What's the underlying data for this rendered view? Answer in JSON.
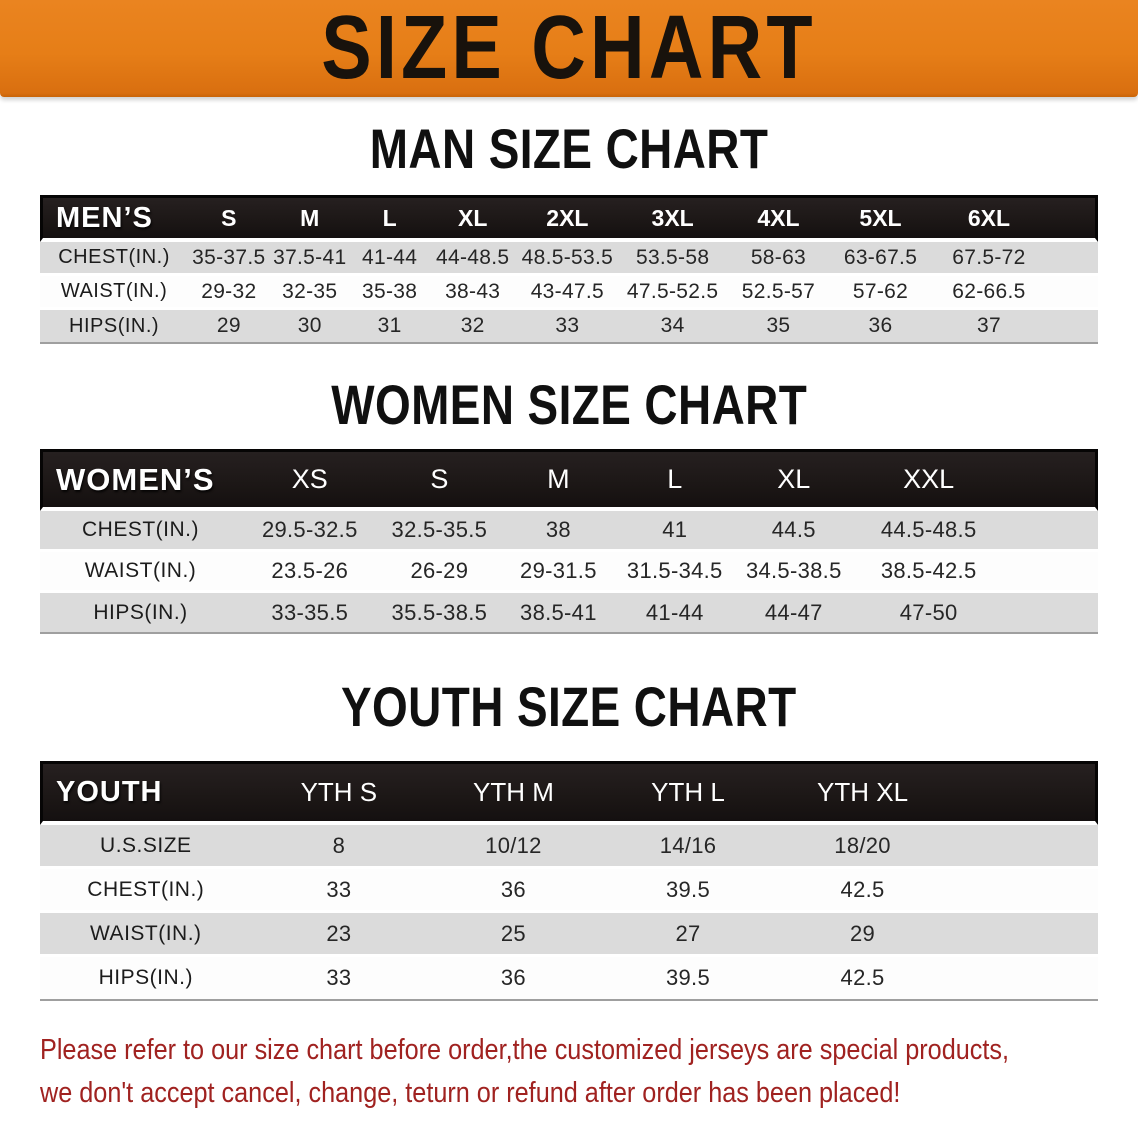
{
  "banner": {
    "title": "SIZE CHART",
    "bg_color": "#e67e17",
    "text_color": "#18120c"
  },
  "sections": [
    {
      "id": "men",
      "heading": "MAN SIZE CHART",
      "corner_label": "MEN’S",
      "sizes": [
        "S",
        "M",
        "L",
        "XL",
        "2XL",
        "3XL",
        "4XL",
        "5XL",
        "6XL"
      ],
      "rows": [
        {
          "label": "CHEST(IN.)",
          "values": [
            "35-37.5",
            "37.5-41",
            "41-44",
            "44-48.5",
            "48.5-53.5",
            "53.5-58",
            "58-63",
            "63-67.5",
            "67.5-72"
          ]
        },
        {
          "label": "WAIST(IN.)",
          "values": [
            "29-32",
            "32-35",
            "35-38",
            "38-43",
            "43-47.5",
            "47.5-52.5",
            "52.5-57",
            "57-62",
            "62-66.5"
          ]
        },
        {
          "label": "HIPS(IN.)",
          "values": [
            "29",
            "30",
            "31",
            "32",
            "33",
            "34",
            "35",
            "36",
            "37"
          ]
        }
      ]
    },
    {
      "id": "women",
      "heading": "WOMEN SIZE CHART",
      "corner_label": "WOMEN’S",
      "sizes": [
        "XS",
        "S",
        "M",
        "L",
        "XL",
        "XXL"
      ],
      "rows": [
        {
          "label": "CHEST(IN.)",
          "values": [
            "29.5-32.5",
            "32.5-35.5",
            "38",
            "41",
            "44.5",
            "44.5-48.5"
          ]
        },
        {
          "label": "WAIST(IN.)",
          "values": [
            "23.5-26",
            "26-29",
            "29-31.5",
            "31.5-34.5",
            "34.5-38.5",
            "38.5-42.5"
          ]
        },
        {
          "label": "HIPS(IN.)",
          "values": [
            "33-35.5",
            "35.5-38.5",
            "38.5-41",
            "41-44",
            "44-47",
            "47-50"
          ]
        }
      ]
    },
    {
      "id": "youth",
      "heading": "YOUTH SIZE CHART",
      "corner_label": "YOUTH",
      "sizes": [
        "YTH S",
        "YTH M",
        "YTH L",
        "YTH XL"
      ],
      "rows": [
        {
          "label": "U.S.SIZE",
          "values": [
            "8",
            "10/12",
            "14/16",
            "18/20"
          ]
        },
        {
          "label": "CHEST(IN.)",
          "values": [
            "33",
            "36",
            "39.5",
            "42.5"
          ]
        },
        {
          "label": "WAIST(IN.)",
          "values": [
            "23",
            "25",
            "27",
            "29"
          ]
        },
        {
          "label": "HIPS(IN.)",
          "values": [
            "33",
            "36",
            "39.5",
            "42.5"
          ]
        }
      ]
    }
  ],
  "table_style": {
    "header_bg": "#1a1514",
    "header_text": "#ffffff",
    "stripe_gray": "#dbdbdb",
    "stripe_white": "#fdfdfd"
  },
  "disclaimer": {
    "color": "#a02220",
    "line1": "Please refer to our size chart before order,the customized jerseys are special products,",
    "line2": "we don't accept cancel, change, teturn or refund after order has been placed!"
  }
}
